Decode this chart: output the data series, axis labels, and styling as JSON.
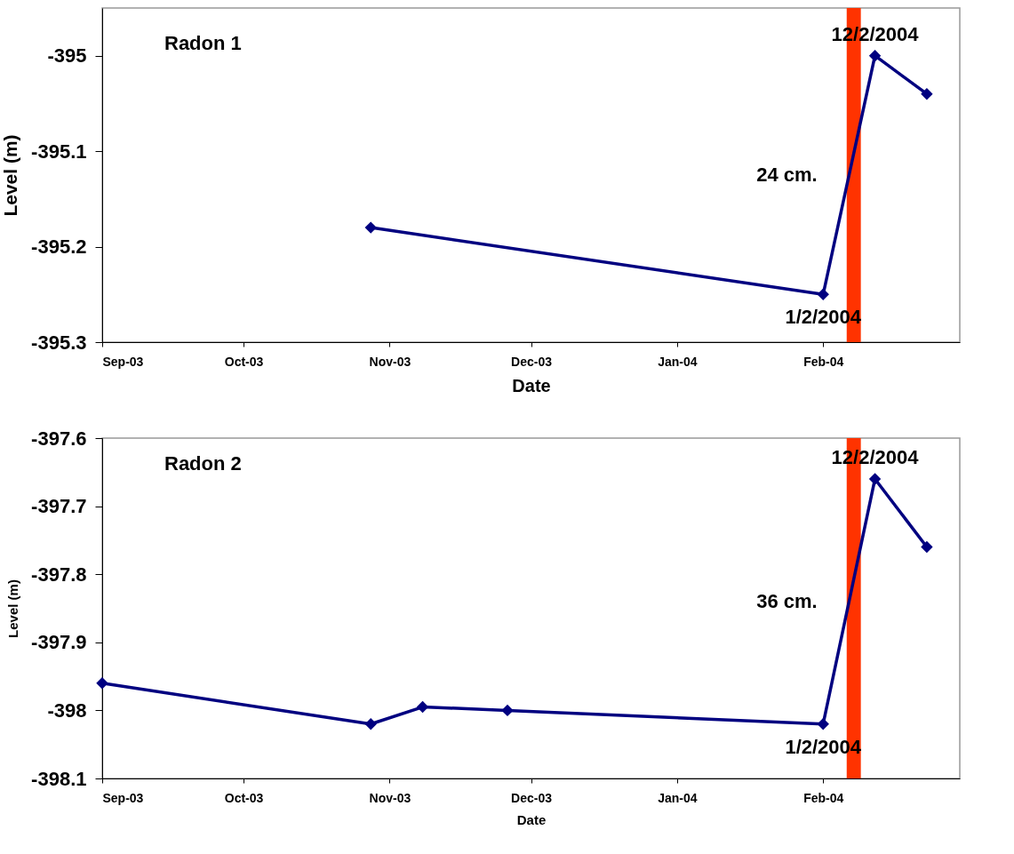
{
  "chart_data": [
    {
      "type": "line",
      "title": "Radon 1",
      "xlabel": "Date",
      "ylabel": "Level (m)",
      "marker": "diamond",
      "line_style": "solid",
      "grid": false,
      "series": [
        {
          "color": "#000080",
          "x": [
            "2003-10-28",
            "2004-02-01",
            "2004-02-12",
            "2004-02-23"
          ],
          "values": [
            -395.18,
            -395.25,
            -395.0,
            -395.04
          ]
        }
      ],
      "xlim": [
        "2003-09-01",
        "2004-03-01"
      ],
      "xticks": [
        {
          "value": "2003-09-01",
          "label": "Sep-03"
        },
        {
          "value": "2003-10-01",
          "label": "Oct-03"
        },
        {
          "value": "2003-11-01",
          "label": "Nov-03"
        },
        {
          "value": "2003-12-01",
          "label": "Dec-03"
        },
        {
          "value": "2004-01-01",
          "label": "Jan-04"
        },
        {
          "value": "2004-02-01",
          "label": "Feb-04"
        }
      ],
      "ylim": [
        -395.3,
        -394.95
      ],
      "yticks": [
        -395.3,
        -395.2,
        -395.1,
        -395
      ],
      "bands": [
        {
          "axis": "x",
          "from": "2004-02-06",
          "to": "2004-02-09",
          "color": "#ff3300"
        }
      ],
      "annotations": [
        {
          "text": "12/2/2004",
          "x": "2004-02-12",
          "y": -395.0
        },
        {
          "text": "1/2/2004",
          "x": "2004-02-01",
          "y": -395.25
        },
        "24 cm."
      ]
    },
    {
      "type": "line",
      "title": "Radon 2",
      "xlabel": "Date",
      "ylabel": "Level (m)",
      "marker": "diamond",
      "line_style": "solid",
      "grid": false,
      "series": [
        {
          "color": "#000080",
          "x": [
            "2003-09-01",
            "2003-10-28",
            "2003-11-08",
            "2003-11-26",
            "2004-02-01",
            "2004-02-12",
            "2004-02-23"
          ],
          "values": [
            -397.96,
            -398.02,
            -397.995,
            -398.0,
            -398.02,
            -397.66,
            -397.76
          ]
        }
      ],
      "xlim": [
        "2003-09-01",
        "2004-03-01"
      ],
      "xticks": [
        {
          "value": "2003-09-01",
          "label": "Sep-03"
        },
        {
          "value": "2003-10-01",
          "label": "Oct-03"
        },
        {
          "value": "2003-11-01",
          "label": "Nov-03"
        },
        {
          "value": "2003-12-01",
          "label": "Dec-03"
        },
        {
          "value": "2004-01-01",
          "label": "Jan-04"
        },
        {
          "value": "2004-02-01",
          "label": "Feb-04"
        }
      ],
      "ylim": [
        -398.1,
        -397.6
      ],
      "yticks": [
        -398.1,
        -398,
        -397.9,
        -397.8,
        -397.7,
        -397.6
      ],
      "bands": [
        {
          "axis": "x",
          "from": "2004-02-06",
          "to": "2004-02-09",
          "color": "#ff3300"
        }
      ],
      "annotations": [
        {
          "text": "12/2/2004",
          "x": "2004-02-12",
          "y": -397.66
        },
        {
          "text": "1/2/2004",
          "x": "2004-02-01",
          "y": -398.02
        },
        "36 cm."
      ]
    }
  ]
}
